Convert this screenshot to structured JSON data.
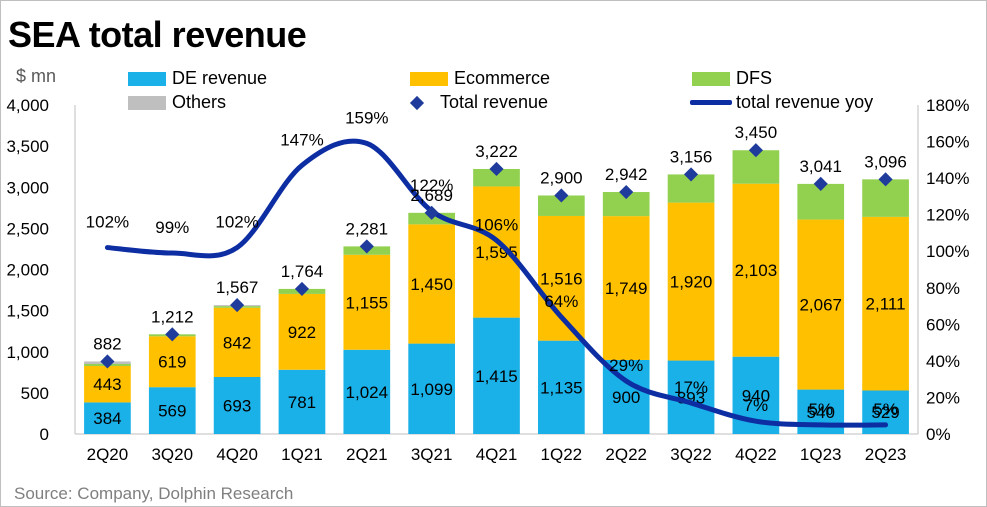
{
  "title": "SEA total revenue",
  "unit": "$ mn",
  "source": "Source: Company, Dolphin Research",
  "legend": {
    "de": "DE revenue",
    "ecom": "Ecommerce",
    "dfs": "DFS",
    "others": "Others",
    "total": "Total revenue",
    "yoy": "total revenue yoy"
  },
  "colors": {
    "de": "#1ab0e8",
    "ecom": "#ffc000",
    "dfs": "#92d050",
    "others": "#bfbfbf",
    "total": "#1f3c9c",
    "yoy": "#0d2da3"
  },
  "chart_data": {
    "type": "bar",
    "stacked": true,
    "categories": [
      "2Q20",
      "3Q20",
      "4Q20",
      "1Q21",
      "2Q21",
      "3Q21",
      "4Q21",
      "1Q22",
      "2Q22",
      "3Q22",
      "4Q22",
      "1Q23",
      "2Q23"
    ],
    "series": [
      {
        "name": "DE revenue",
        "key": "de",
        "values": [
          384,
          569,
          693,
          781,
          1024,
          1099,
          1415,
          1135,
          900,
          893,
          940,
          540,
          529
        ]
      },
      {
        "name": "Ecommerce",
        "key": "ecom",
        "values": [
          443,
          619,
          842,
          922,
          1155,
          1450,
          1595,
          1516,
          1749,
          1920,
          2103,
          2067,
          2111
        ]
      },
      {
        "name": "DFS",
        "key": "dfs",
        "values": [
          24,
          24,
          20,
          61,
          102,
          140,
          212,
          249,
          293,
          343,
          407,
          434,
          456
        ]
      },
      {
        "name": "Others",
        "key": "others",
        "values": [
          31,
          0,
          12,
          0,
          0,
          0,
          0,
          0,
          0,
          0,
          0,
          0,
          0
        ]
      }
    ],
    "de_labels": [
      "384",
      "569",
      "693",
      "781",
      "1,024",
      "1,099",
      "1,415",
      "1,135",
      "900",
      "893",
      "940",
      "540",
      "529"
    ],
    "ecom_labels": [
      "443",
      "619",
      "842",
      "922",
      "1,155",
      "1,450",
      "1,595",
      "1,516",
      "1,749",
      "1,920",
      "2,103",
      "2,067",
      "2,111"
    ],
    "total": {
      "name": "Total revenue",
      "values": [
        882,
        1212,
        1567,
        1764,
        2281,
        2689,
        3222,
        2900,
        2942,
        3156,
        3450,
        3041,
        3096
      ],
      "labels": [
        "882",
        "1,212",
        "1,567",
        "1,764",
        "2,281",
        "2,689",
        "3,222",
        "2,900",
        "2,942",
        "3,156",
        "3,450",
        "3,041",
        "3,096"
      ]
    },
    "yoy": {
      "name": "total revenue yoy",
      "values": [
        102,
        99,
        102,
        147,
        159,
        122,
        106,
        64,
        29,
        17,
        7,
        5,
        5
      ],
      "labels": [
        "102%",
        "99%",
        "102%",
        "147%",
        "159%",
        "122%",
        "106%",
        "64%",
        "29%",
        "17%",
        "7%",
        "5%",
        "5%"
      ]
    },
    "y_left": {
      "min": 0,
      "max": 4000,
      "ticks": [
        "0",
        "500",
        "1,000",
        "1,500",
        "2,000",
        "2,500",
        "3,000",
        "3,500",
        "4,000"
      ]
    },
    "y_right": {
      "min": 0,
      "max": 180,
      "ticks": [
        "0%",
        "20%",
        "40%",
        "60%",
        "80%",
        "100%",
        "120%",
        "140%",
        "160%",
        "180%"
      ]
    }
  }
}
